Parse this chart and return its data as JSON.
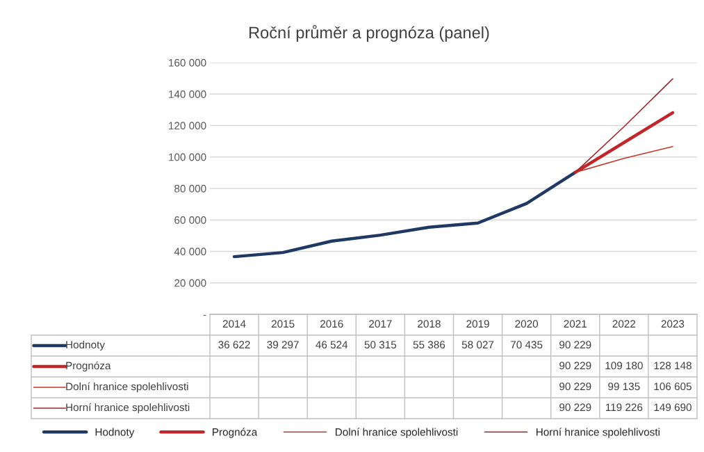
{
  "chart_data": {
    "type": "line",
    "title": "Roční průměr a prognóza (panel)",
    "categories": [
      "2014",
      "2015",
      "2016",
      "2017",
      "2018",
      "2019",
      "2020",
      "2021",
      "2022",
      "2023"
    ],
    "series": [
      {
        "name": "Hodnoty",
        "color": "#1f3864",
        "values": [
          36622,
          39297,
          46524,
          50315,
          55386,
          58027,
          70435,
          90229,
          null,
          null
        ],
        "value_labels": [
          "36 622",
          "39 297",
          "46 524",
          "50 315",
          "55 386",
          "58 027",
          "70 435",
          "90 229",
          null,
          null
        ]
      },
      {
        "name": "Prognóza",
        "color": "#c0272d",
        "values": [
          null,
          null,
          null,
          null,
          null,
          null,
          null,
          90229,
          109180,
          128148
        ],
        "value_labels": [
          null,
          null,
          null,
          null,
          null,
          null,
          null,
          "90 229",
          "109 180",
          "128 148"
        ]
      },
      {
        "name": "Dolní hranice spolehlivosti",
        "color": "#c0392b",
        "values": [
          null,
          null,
          null,
          null,
          null,
          null,
          null,
          90229,
          99135,
          106605
        ],
        "value_labels": [
          null,
          null,
          null,
          null,
          null,
          null,
          null,
          "90 229",
          "99 135",
          "106 605"
        ]
      },
      {
        "name": "Horní hranice spolehlivosti",
        "color": "#a0282c",
        "values": [
          null,
          null,
          null,
          null,
          null,
          null,
          null,
          90229,
          119226,
          149690
        ],
        "value_labels": [
          null,
          null,
          null,
          null,
          null,
          null,
          null,
          "90 229",
          "119 226",
          "149 690"
        ]
      }
    ],
    "ylim": [
      0,
      160000
    ],
    "yticks": [
      {
        "value": 0,
        "label": "-"
      },
      {
        "value": 20000,
        "label": "20 000"
      },
      {
        "value": 40000,
        "label": "40 000"
      },
      {
        "value": 60000,
        "label": "60 000"
      },
      {
        "value": 80000,
        "label": "80 000"
      },
      {
        "value": 100000,
        "label": "100 000"
      },
      {
        "value": 120000,
        "label": "120 000"
      },
      {
        "value": 140000,
        "label": "140 000"
      },
      {
        "value": 160000,
        "label": "160 000"
      }
    ],
    "grid": "y",
    "legend": "bottom",
    "line_style": "solid",
    "marker": "none"
  }
}
